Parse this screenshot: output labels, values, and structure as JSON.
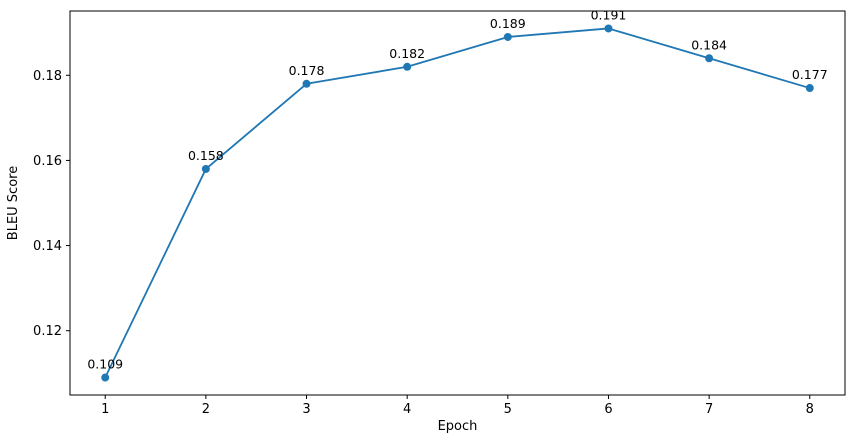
{
  "chart_data": {
    "type": "line",
    "title": "",
    "xlabel": "Epoch",
    "ylabel": "BLEU Score",
    "x": [
      1,
      2,
      3,
      4,
      5,
      6,
      7,
      8
    ],
    "series": [
      {
        "name": "BLEU Score",
        "values": [
          0.109,
          0.158,
          0.178,
          0.182,
          0.189,
          0.191,
          0.184,
          0.177
        ],
        "point_labels": [
          "0.109",
          "0.158",
          "0.178",
          "0.182",
          "0.189",
          "0.191",
          "0.184",
          "0.177"
        ],
        "color": "#1f77b4",
        "marker": "circle"
      }
    ],
    "x_ticks": [
      "1",
      "2",
      "3",
      "4",
      "5",
      "6",
      "7",
      "8"
    ],
    "x_tick_values": [
      1,
      2,
      3,
      4,
      5,
      6,
      7,
      8
    ],
    "y_ticks": [
      "0.12",
      "0.14",
      "0.16",
      "0.18"
    ],
    "y_tick_values": [
      0.12,
      0.14,
      0.16,
      0.18
    ],
    "xlim": [
      0.65,
      8.35
    ],
    "ylim": [
      0.1049,
      0.1951
    ],
    "grid": false,
    "legend": "none",
    "spine_color": "#000000",
    "background": "#ffffff"
  }
}
